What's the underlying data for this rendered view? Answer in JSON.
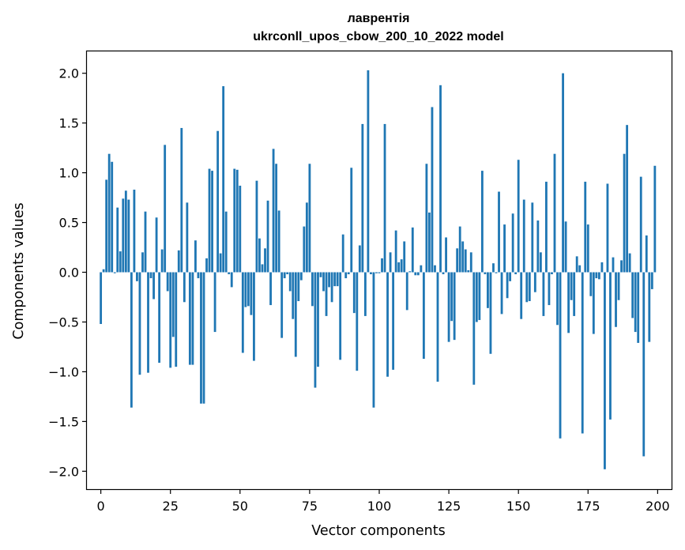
{
  "chart_data": {
    "type": "bar",
    "title": "лаврентія",
    "subtitle": "ukrconll_upos_cbow_200_10_2022 model",
    "xlabel": "Vector components",
    "ylabel": "Components values",
    "xlim": [
      -5,
      205
    ],
    "ylim": [
      -2.18,
      2.22
    ],
    "xticks": [
      0,
      25,
      50,
      75,
      100,
      125,
      150,
      175,
      200
    ],
    "xtick_labels": [
      "0",
      "25",
      "50",
      "75",
      "100",
      "125",
      "150",
      "175",
      "200"
    ],
    "yticks": [
      2.0,
      1.5,
      1.0,
      0.5,
      0.0,
      -0.5,
      -1.0,
      -1.5,
      -2.0
    ],
    "ytick_labels": [
      "2.0",
      "1.5",
      "1.0",
      "0.5",
      "0.0",
      "−0.5",
      "−1.0",
      "−1.5",
      "−2.0"
    ],
    "grid": false,
    "color": "#1f77b4",
    "values": [
      -0.52,
      0.03,
      0.93,
      1.19,
      1.11,
      -0.01,
      0.65,
      0.21,
      0.74,
      0.82,
      0.73,
      -1.36,
      0.83,
      -0.09,
      -1.03,
      0.2,
      0.61,
      -1.01,
      -0.06,
      -0.27,
      0.55,
      -0.91,
      0.23,
      1.28,
      -0.19,
      -0.96,
      -0.65,
      -0.95,
      0.22,
      1.45,
      -0.3,
      0.7,
      -0.93,
      -0.93,
      0.32,
      -0.06,
      -1.32,
      -1.32,
      0.14,
      1.04,
      1.02,
      -0.6,
      1.42,
      0.19,
      1.87,
      0.61,
      -0.02,
      -0.15,
      1.04,
      1.03,
      0.87,
      -0.81,
      -0.35,
      -0.34,
      -0.43,
      -0.89,
      0.92,
      0.34,
      0.08,
      0.24,
      0.72,
      -0.33,
      1.24,
      1.09,
      0.62,
      -0.66,
      -0.06,
      -0.02,
      -0.19,
      -0.47,
      -0.85,
      -0.29,
      -0.08,
      0.46,
      0.7,
      1.09,
      -0.34,
      -1.16,
      -0.95,
      -0.05,
      -0.19,
      -0.44,
      -0.15,
      -0.3,
      -0.14,
      -0.14,
      -0.88,
      0.38,
      -0.06,
      -0.02,
      1.05,
      -0.41,
      -0.99,
      0.27,
      1.49,
      -0.44,
      2.03,
      -0.02,
      -1.36,
      -0.01,
      -0.01,
      0.14,
      1.49,
      -1.05,
      0.2,
      -0.98,
      0.42,
      0.1,
      0.13,
      0.31,
      -0.38,
      0.01,
      0.45,
      -0.03,
      -0.03,
      0.07,
      -0.87,
      1.09,
      0.6,
      1.66,
      0.07,
      -1.1,
      1.88,
      -0.02,
      0.35,
      -0.7,
      -0.49,
      -0.68,
      0.24,
      0.46,
      0.31,
      0.23,
      0.02,
      0.2,
      -1.13,
      -0.5,
      -0.48,
      1.02,
      -0.02,
      -0.36,
      -0.82,
      0.09,
      -0.01,
      0.81,
      -0.42,
      0.48,
      -0.26,
      -0.09,
      0.59,
      -0.02,
      1.13,
      -0.47,
      0.73,
      -0.3,
      -0.29,
      0.7,
      -0.2,
      0.52,
      0.2,
      -0.44,
      0.91,
      -0.33,
      -0.02,
      1.19,
      -0.53,
      -1.67,
      2.0,
      0.51,
      -0.61,
      -0.28,
      -0.44,
      0.16,
      0.07,
      -1.62,
      0.91,
      0.48,
      -0.24,
      -0.62,
      -0.06,
      -0.07,
      0.1,
      -1.98,
      0.89,
      -1.48,
      0.15,
      -0.55,
      -0.28,
      0.12,
      1.19,
      1.48,
      0.19,
      -0.46,
      -0.6,
      -0.71,
      0.96,
      -1.85,
      0.37,
      -0.7,
      -0.17,
      1.07
    ]
  }
}
